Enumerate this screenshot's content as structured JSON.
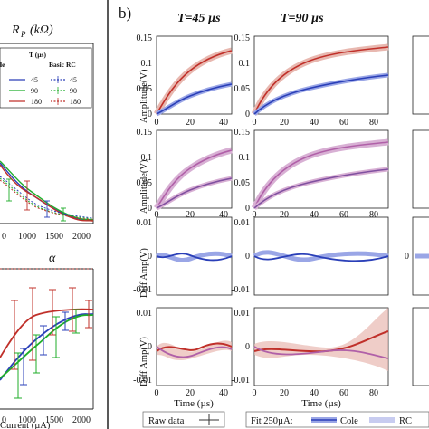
{
  "panel_label": "b)",
  "col_titles": [
    "T=45 µs",
    "T=90 µs"
  ],
  "left_top_title": "R",
  "left_top_title_sub": "P",
  "left_top_title_unit": "(kΩ)",
  "left_bottom_title": "α",
  "left_xlabel": "Current (µA)",
  "left_xticks": [
    "0",
    "1000",
    "1500",
    "2000"
  ],
  "left_xticks_bottom": [
    "0",
    "1000",
    "1500",
    "2000"
  ],
  "legend_left": {
    "header_t": "T (µs)",
    "header_rc": "Basic RC",
    "cole_partial": "le",
    "rows": [
      {
        "t": "45",
        "t2": "45"
      },
      {
        "t": "90",
        "t2": "90"
      },
      {
        "t": "180",
        "t2": "180"
      }
    ]
  },
  "row_ylabels": [
    "Amplitude(V)",
    "Amplitude(V)",
    "Diff Amp(V)",
    "Diff Amp(V)"
  ],
  "amp_yticks": [
    "0",
    "0.05",
    "0.1",
    "0.15"
  ],
  "diff_yticks": [
    "-0.01",
    "0",
    "0.01"
  ],
  "xlabel_time": "Time (µs)",
  "xticks_45": [
    "0",
    "20",
    "40"
  ],
  "xticks_90": [
    "0",
    "20",
    "40",
    "60",
    "80"
  ],
  "bottom_legend": {
    "raw": "Raw data",
    "fit": "Fit 250µA:",
    "cole": "Cole",
    "rc": "RC"
  },
  "colors": {
    "red": "#c0302a",
    "blue": "#2a3fb8",
    "green": "#1fae2a",
    "pink": "#b060a8",
    "lightblue": "#7f90e0",
    "band": "#e8b8b0"
  },
  "chart_data": [
    {
      "type": "line",
      "title": "R_P (kΩ)",
      "xlabel": "",
      "x": [
        0,
        500,
        1000,
        1500,
        2000
      ],
      "series": [
        {
          "name": "45",
          "values": [
            7.2,
            4.1,
            1.9,
            0.9,
            0.5
          ]
        },
        {
          "name": "90",
          "values": [
            7.0,
            4.0,
            1.8,
            0.8,
            0.5
          ]
        },
        {
          "name": "180",
          "values": [
            6.8,
            3.7,
            1.7,
            0.7,
            0.4
          ]
        }
      ]
    },
    {
      "type": "line",
      "title": "α",
      "xlabel": "Current (µA)",
      "x": [
        0,
        500,
        1000,
        1500,
        2000
      ],
      "series": [
        {
          "name": "45",
          "values": [
            0.5,
            0.6,
            0.7,
            0.74,
            0.75
          ]
        },
        {
          "name": "90",
          "values": [
            0.48,
            0.58,
            0.68,
            0.73,
            0.76
          ]
        },
        {
          "name": "180",
          "values": [
            0.55,
            0.75,
            0.8,
            0.82,
            0.8
          ]
        }
      ]
    },
    {
      "type": "line",
      "title": "T=45 µs",
      "ylabel": "Amplitude(V)",
      "x": [
        0,
        10,
        20,
        30,
        40,
        45
      ],
      "ylim": [
        0,
        0.15
      ],
      "series": [
        {
          "name": "red",
          "values": [
            0,
            0.055,
            0.085,
            0.11,
            0.127,
            0.133
          ]
        },
        {
          "name": "blue",
          "values": [
            0,
            0.022,
            0.036,
            0.047,
            0.056,
            0.059
          ]
        }
      ]
    },
    {
      "type": "line",
      "title": "T=90 µs",
      "ylabel": "Amplitude(V)",
      "x": [
        0,
        20,
        40,
        60,
        80,
        90
      ],
      "ylim": [
        0,
        0.15
      ],
      "series": [
        {
          "name": "red",
          "values": [
            0,
            0.085,
            0.114,
            0.132,
            0.143,
            0.147
          ]
        },
        {
          "name": "blue",
          "values": [
            0,
            0.036,
            0.054,
            0.066,
            0.075,
            0.078
          ]
        }
      ]
    },
    {
      "type": "line",
      "ylabel": "Diff Amp(V)",
      "x": [
        0,
        10,
        20,
        30,
        40,
        45
      ],
      "ylim": [
        -0.01,
        0.01
      ],
      "series": [
        {
          "name": "Cole",
          "values": [
            0,
            0.001,
            -0.001,
            0.0005,
            0.001,
            0
          ]
        },
        {
          "name": "RC",
          "values": [
            0,
            -0.001,
            0.001,
            -0.0005,
            -0.001,
            0
          ]
        }
      ]
    },
    {
      "type": "line",
      "ylabel": "Diff Amp(V)",
      "x": [
        0,
        20,
        40,
        60,
        80,
        90
      ],
      "ylim": [
        -0.01,
        0.01
      ],
      "series": [
        {
          "name": "Cole",
          "values": [
            0,
            0.001,
            -0.001,
            0.0005,
            0.001,
            0
          ]
        },
        {
          "name": "RC",
          "values": [
            0,
            -0.001,
            0.001,
            -0.0005,
            -0.001,
            0
          ]
        }
      ]
    }
  ]
}
